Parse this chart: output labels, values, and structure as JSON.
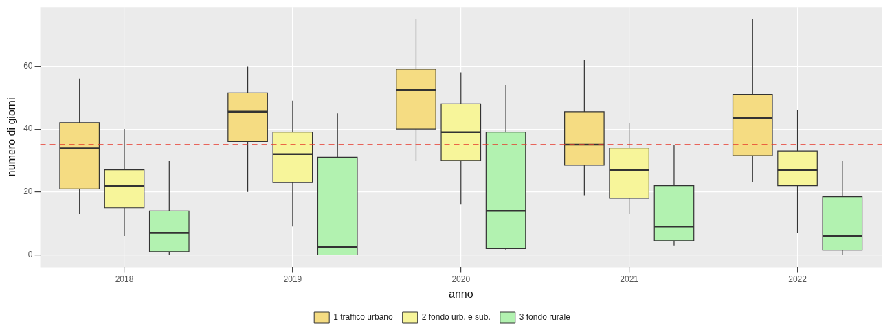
{
  "chart_data": {
    "type": "box",
    "xlabel": "anno",
    "ylabel": "numero di giorni",
    "categories": [
      "2018",
      "2019",
      "2020",
      "2021",
      "2022"
    ],
    "ylim": [
      -3.9,
      78.8
    ],
    "yticks": [
      0,
      20,
      40,
      60
    ],
    "grid": true,
    "legend": "bottom",
    "ref_lines": [
      {
        "axis": "y",
        "value": 35,
        "color": "#e8392b",
        "line_style": "dashed"
      }
    ],
    "series": [
      {
        "name": "1 traffico urbano",
        "color": "#f5dc82",
        "boxes": [
          {
            "low": 13,
            "q1": 21,
            "median": 34,
            "q3": 42,
            "high": 56
          },
          {
            "low": 20,
            "q1": 36,
            "median": 45.5,
            "q3": 51.5,
            "high": 60
          },
          {
            "low": 30,
            "q1": 40,
            "median": 52.5,
            "q3": 59,
            "high": 75
          },
          {
            "low": 19,
            "q1": 28.5,
            "median": 35,
            "q3": 45.5,
            "high": 62
          },
          {
            "low": 23,
            "q1": 31.5,
            "median": 43.5,
            "q3": 51,
            "high": 75
          }
        ]
      },
      {
        "name": "2 fondo urb. e sub.",
        "color": "#f7f59a",
        "boxes": [
          {
            "low": 6,
            "q1": 15,
            "median": 22,
            "q3": 27,
            "high": 40
          },
          {
            "low": 9,
            "q1": 23,
            "median": 32,
            "q3": 39,
            "high": 49
          },
          {
            "low": 16,
            "q1": 30,
            "median": 39,
            "q3": 48,
            "high": 58
          },
          {
            "low": 13,
            "q1": 18,
            "median": 27,
            "q3": 34,
            "high": 42
          },
          {
            "low": 7,
            "q1": 22,
            "median": 27,
            "q3": 33,
            "high": 46
          }
        ]
      },
      {
        "name": "3 fondo rurale",
        "color": "#b2f2b0",
        "boxes": [
          {
            "low": 0,
            "q1": 1,
            "median": 7,
            "q3": 14,
            "high": 30
          },
          {
            "low": 0,
            "q1": 0,
            "median": 2.5,
            "q3": 31,
            "high": 45
          },
          {
            "low": 1.5,
            "q1": 2,
            "median": 14,
            "q3": 39,
            "high": 54
          },
          {
            "low": 3,
            "q1": 4.5,
            "median": 9,
            "q3": 22,
            "high": 35
          },
          {
            "low": 0,
            "q1": 1.5,
            "median": 6,
            "q3": 18.5,
            "high": 30
          }
        ]
      }
    ]
  }
}
